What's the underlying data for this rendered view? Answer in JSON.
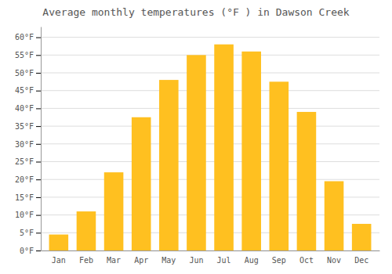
{
  "chart_data": {
    "type": "bar",
    "title": "Average monthly temperatures (°F ) in Dawson Creek",
    "categories": [
      "Jan",
      "Feb",
      "Mar",
      "Apr",
      "May",
      "Jun",
      "Jul",
      "Aug",
      "Sep",
      "Oct",
      "Nov",
      "Dec"
    ],
    "values": [
      4.5,
      11.0,
      22.0,
      37.5,
      48.0,
      55.0,
      58.0,
      56.0,
      47.5,
      39.0,
      19.5,
      7.5
    ],
    "color": "#FFC020",
    "ylim": [
      0,
      63
    ],
    "yticks": [
      {
        "value": 0,
        "label": "0°F"
      },
      {
        "value": 5,
        "label": "5°F"
      },
      {
        "value": 10,
        "label": "10°F"
      },
      {
        "value": 15,
        "label": "15°F"
      },
      {
        "value": 20,
        "label": "20°F"
      },
      {
        "value": 25,
        "label": "25°F"
      },
      {
        "value": 30,
        "label": "30°F"
      },
      {
        "value": 35,
        "label": "35°F"
      },
      {
        "value": 40,
        "label": "40°F"
      },
      {
        "value": 45,
        "label": "45°F"
      },
      {
        "value": 50,
        "label": "50°F"
      },
      {
        "value": 55,
        "label": "55°F"
      },
      {
        "value": 60,
        "label": "60°F"
      }
    ],
    "grid": true
  }
}
